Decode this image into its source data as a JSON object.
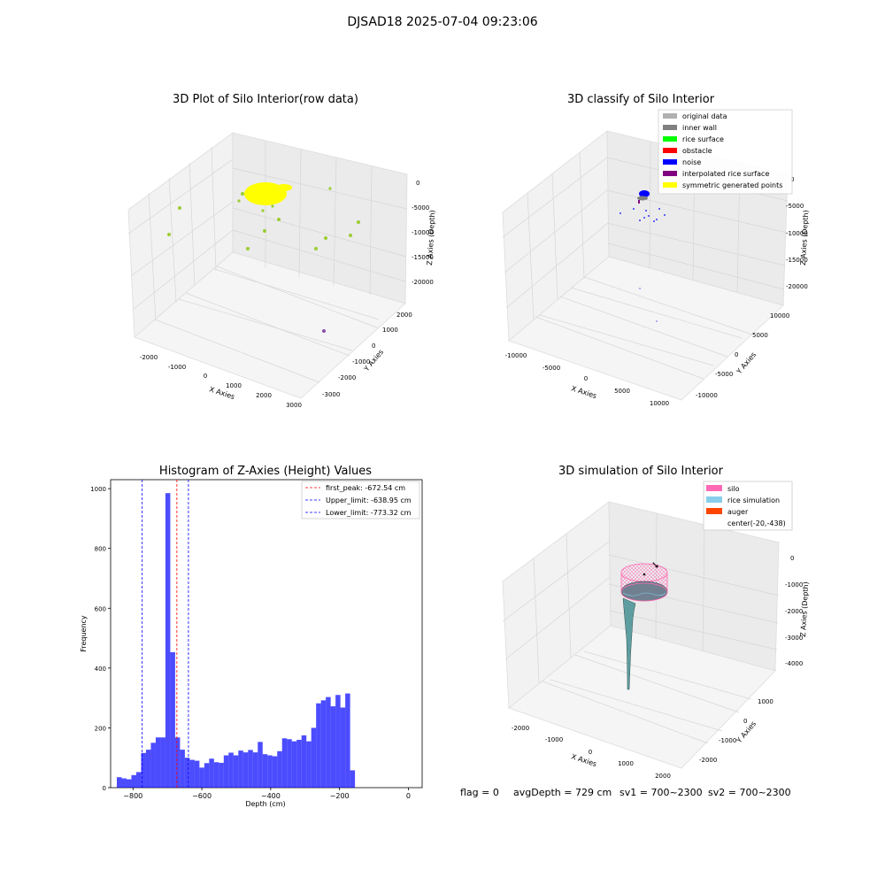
{
  "figure": {
    "title": "DJSAD18 2025-07-04 09:23:06"
  },
  "panels": {
    "raw": {
      "title": "3D Plot of Silo Interior(row data)",
      "xlabel": "X Axies",
      "ylabel": "Y Axies",
      "zlabel": "Z Axies (Depth)",
      "xticks": [
        "-2000",
        "-1000",
        "0",
        "1000",
        "2000",
        "3000"
      ],
      "yticks": [
        "2000",
        "1000",
        "0",
        "-1000",
        "-2000",
        "-3000"
      ],
      "zticks": [
        "0",
        "-5000",
        "-10000",
        "-15000",
        "-20000"
      ]
    },
    "classify": {
      "title": "3D classify of Silo Interior",
      "xlabel": "X Axies",
      "ylabel": "Y Axies",
      "zlabel": "Z Axies (Depth)",
      "xticks": [
        "-10000",
        "-5000",
        "0",
        "5000",
        "10000"
      ],
      "yticks": [
        "10000",
        "5000",
        "0",
        "-5000",
        "-10000"
      ],
      "zticks": [
        "0",
        "-5000",
        "-10000",
        "-15000",
        "-20000"
      ],
      "legend": [
        {
          "label": "original data",
          "color": "#b0b0b0"
        },
        {
          "label": "inner wall",
          "color": "#808080"
        },
        {
          "label": "rice surface",
          "color": "#00ff00"
        },
        {
          "label": "obstacle",
          "color": "#ff0000"
        },
        {
          "label": "noise",
          "color": "#0000ff"
        },
        {
          "label": "interpolated rice surface",
          "color": "#800080"
        },
        {
          "label": "symmetric generated points",
          "color": "#ffff00"
        }
      ]
    },
    "simulation": {
      "title": "3D simulation of Silo Interior",
      "xlabel": "X Axies",
      "ylabel": "Y Axies",
      "zlabel": "Z Axies (Depth)",
      "xticks": [
        "-2000",
        "-1000",
        "0",
        "1000",
        "2000"
      ],
      "yticks": [
        "1000",
        "0",
        "-1000",
        "-2000"
      ],
      "zticks": [
        "0",
        "-1000",
        "-2000",
        "-3000",
        "-4000"
      ],
      "legend": [
        {
          "label": "silo",
          "color": "#ff69b4"
        },
        {
          "label": "rice simulation",
          "color": "#87ceeb"
        },
        {
          "label": "auger",
          "color": "#ff4500"
        },
        {
          "label": "center(-20,-438)",
          "color": ""
        }
      ]
    }
  },
  "footer": {
    "flag": "flag = 0",
    "avg_depth": "avgDepth = 729 cm",
    "sv1": "sv1 = 700~2300",
    "sv2": "sv2 = 700~2300"
  },
  "colors": {
    "bar": "#0000ff",
    "peak_line": "#ff0000",
    "limit_line": "#0000ff",
    "yellow_cloud": "#ffff00",
    "scatter_green": "#9acd32",
    "noise_blue": "#0000ff"
  },
  "chart_data": {
    "type": "bar",
    "title": "Histogram of Z-Axies (Height) Values",
    "xlabel": "Depth (cm)",
    "ylabel": "Frequency",
    "bin_start": -847,
    "bin_width": 14.12,
    "values": [
      35,
      31,
      28,
      42,
      52,
      116,
      127,
      150,
      168,
      168,
      985,
      453,
      168,
      127,
      100,
      93,
      90,
      67,
      82,
      97,
      85,
      83,
      108,
      117,
      108,
      124,
      118,
      126,
      118,
      153,
      112,
      108,
      105,
      122,
      165,
      162,
      155,
      160,
      175,
      155,
      200,
      282,
      292,
      303,
      272,
      310,
      268,
      315,
      58
    ],
    "xlim": [
      -865,
      40
    ],
    "ylim": [
      0,
      1030
    ],
    "xticks": [
      -800,
      -600,
      -400,
      -200,
      0
    ],
    "yticks": [
      0,
      200,
      400,
      600,
      800,
      1000
    ],
    "vlines": [
      {
        "name": "first_peak: -672.54 cm",
        "x": -672.54,
        "color": "#ff0000"
      },
      {
        "name": "Upper_limit: -638.95 cm",
        "x": -638.95,
        "color": "#0000ff"
      },
      {
        "name": "Lower_limit: -773.32 cm",
        "x": -773.32,
        "color": "#0000ff"
      }
    ],
    "legend_position": "upper right"
  }
}
